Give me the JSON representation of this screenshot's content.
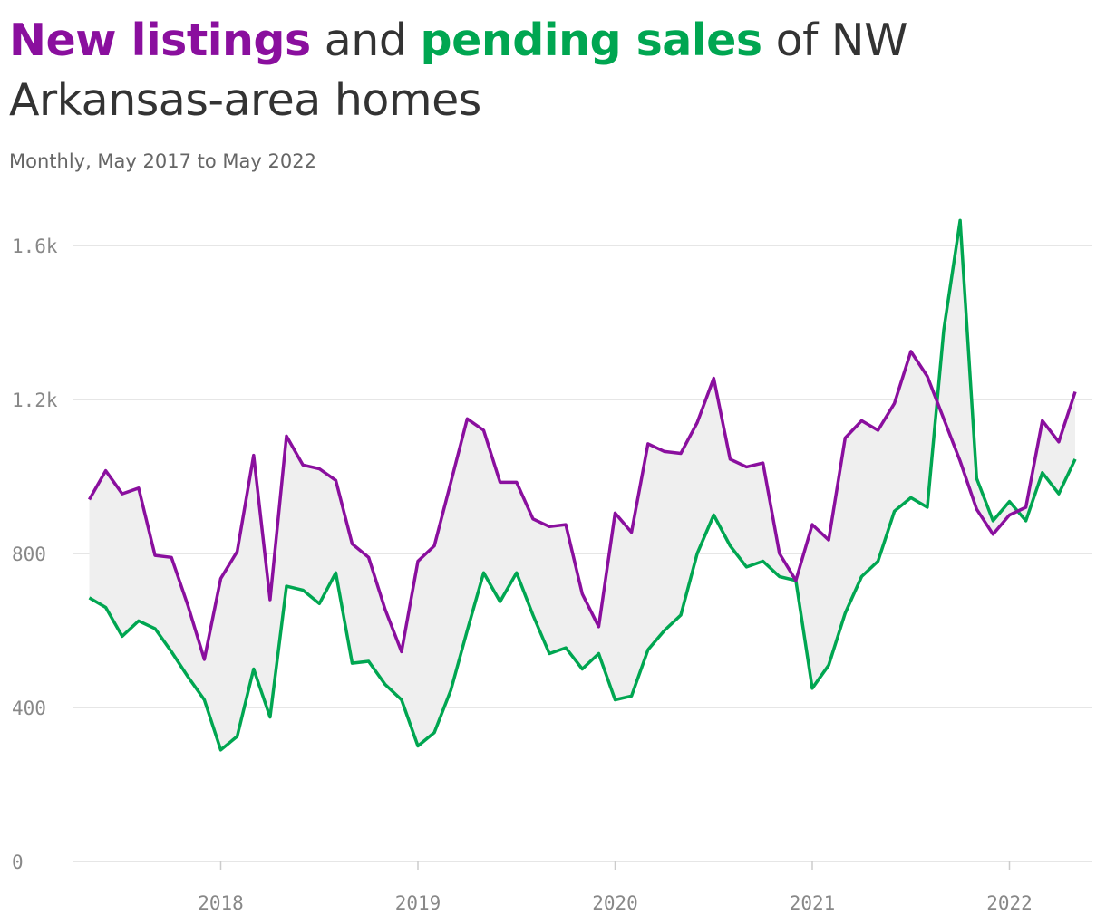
{
  "title": {
    "part1": "New listings",
    "part2": " and ",
    "part3": "pending sales",
    "part4": " of NW Arkansas-area homes"
  },
  "subtitle": "Monthly, May 2017 to May 2022",
  "colors": {
    "new_listings": "#8a0f9e",
    "pending_sales": "#00a651",
    "band_fill": "#efefef",
    "grid": "#dddddd",
    "tick_text": "#888888",
    "title_text": "#333333"
  },
  "chart_data": {
    "type": "line",
    "x": [
      "2017-05",
      "2017-06",
      "2017-07",
      "2017-08",
      "2017-09",
      "2017-10",
      "2017-11",
      "2017-12",
      "2018-01",
      "2018-02",
      "2018-03",
      "2018-04",
      "2018-05",
      "2018-06",
      "2018-07",
      "2018-08",
      "2018-09",
      "2018-10",
      "2018-11",
      "2018-12",
      "2019-01",
      "2019-02",
      "2019-03",
      "2019-04",
      "2019-05",
      "2019-06",
      "2019-07",
      "2019-08",
      "2019-09",
      "2019-10",
      "2019-11",
      "2019-12",
      "2020-01",
      "2020-02",
      "2020-03",
      "2020-04",
      "2020-05",
      "2020-06",
      "2020-07",
      "2020-08",
      "2020-09",
      "2020-10",
      "2020-11",
      "2020-12",
      "2021-01",
      "2021-02",
      "2021-03",
      "2021-04",
      "2021-05",
      "2021-06",
      "2021-07",
      "2021-08",
      "2021-09",
      "2021-10",
      "2021-11",
      "2021-12",
      "2022-01",
      "2022-02",
      "2022-03",
      "2022-04",
      "2022-05"
    ],
    "series": [
      {
        "name": "New listings",
        "values": [
          940,
          1015,
          955,
          970,
          795,
          790,
          665,
          525,
          735,
          805,
          1055,
          680,
          1105,
          1030,
          1020,
          990,
          825,
          790,
          655,
          545,
          780,
          820,
          985,
          1150,
          1120,
          985,
          985,
          890,
          870,
          875,
          695,
          610,
          905,
          855,
          1085,
          1065,
          1060,
          1140,
          1255,
          1045,
          1025,
          1035,
          800,
          730,
          875,
          835,
          1100,
          1145,
          1120,
          1190,
          1325,
          1260,
          1150,
          1040,
          915,
          850,
          900,
          920,
          1145,
          1090,
          1220
        ]
      },
      {
        "name": "Pending sales",
        "values": [
          685,
          660,
          585,
          625,
          605,
          545,
          480,
          420,
          290,
          325,
          500,
          375,
          715,
          705,
          670,
          750,
          515,
          520,
          460,
          420,
          300,
          335,
          445,
          600,
          750,
          675,
          750,
          640,
          540,
          555,
          500,
          540,
          420,
          430,
          550,
          600,
          640,
          800,
          900,
          820,
          765,
          780,
          740,
          730,
          450,
          510,
          645,
          740,
          780,
          910,
          945,
          920,
          1380,
          1665,
          995,
          885,
          935,
          885,
          1010,
          955,
          1045
        ]
      }
    ],
    "xticks": [
      "2018",
      "2019",
      "2020",
      "2021",
      "2022"
    ],
    "yticks": [
      "0",
      "400",
      "800",
      "1.2k",
      "1.6k"
    ],
    "ylim": [
      0,
      1700
    ],
    "grid": "horizontal",
    "legend": "in title"
  }
}
